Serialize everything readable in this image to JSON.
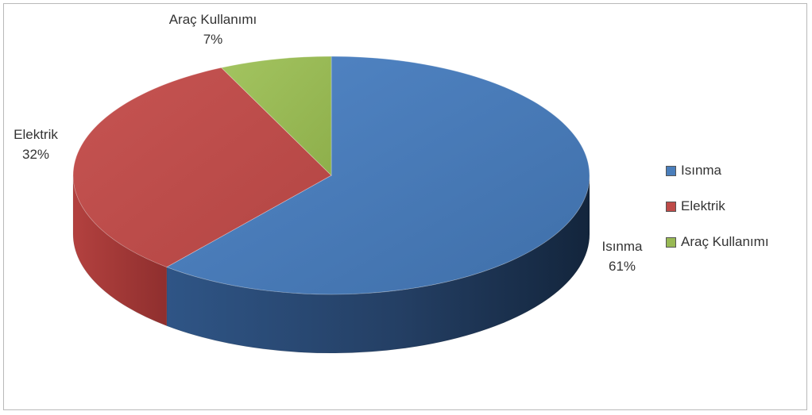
{
  "chart_data": {
    "type": "pie",
    "categories": [
      "Isınma",
      "Elektrik",
      "Araç Kullanımı"
    ],
    "values": [
      61,
      32,
      7
    ],
    "value_labels": [
      "61%",
      "32%",
      "7%"
    ],
    "colors": [
      "#4a7ebb",
      "#be4b48",
      "#98b954"
    ],
    "legend_placement": "right",
    "title": "",
    "style": "3d-exploded-none"
  }
}
